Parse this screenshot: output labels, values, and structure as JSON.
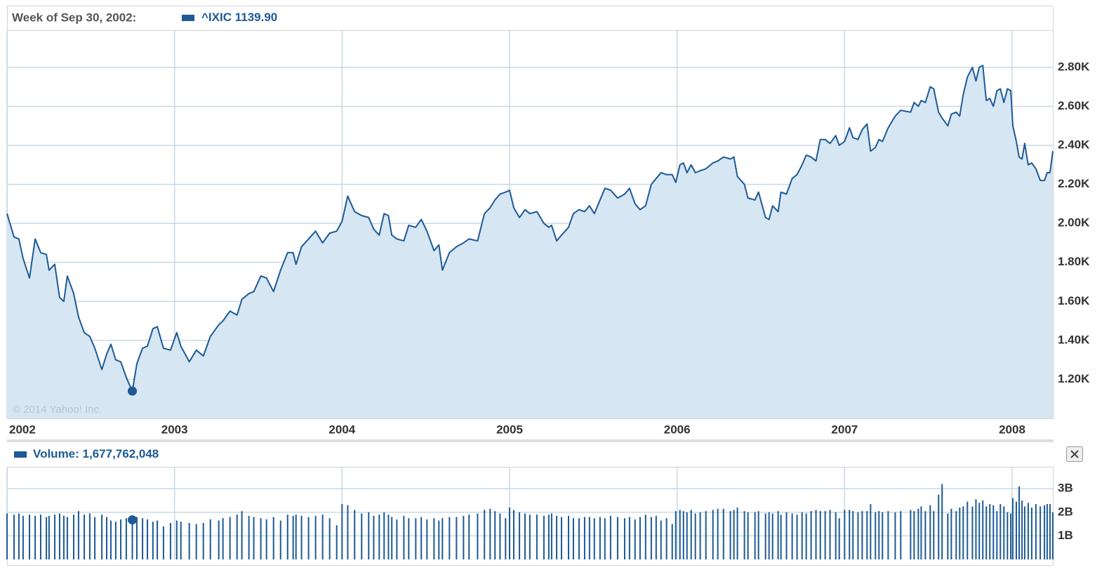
{
  "chart_data": {
    "type": "area",
    "hover": {
      "title": "Week of Sep 30, 2002:",
      "index": 24
    },
    "watermark": "© 2014 Yahoo! Inc.",
    "grid": true,
    "xlim": [
      2002,
      2008.243
    ],
    "xticks": [
      2002,
      2003,
      2004,
      2005,
      2006,
      2007,
      2008
    ],
    "ylim": [
      1000,
      2987
    ],
    "yticks": [
      {
        "value": 1200,
        "label": "1.20K"
      },
      {
        "value": 1400,
        "label": "1.40K"
      },
      {
        "value": 1600,
        "label": "1.60K"
      },
      {
        "value": 1800,
        "label": "1.80K"
      },
      {
        "value": 2000,
        "label": "2.00K"
      },
      {
        "value": 2200,
        "label": "2.20K"
      },
      {
        "value": 2400,
        "label": "2.40K"
      },
      {
        "value": 2600,
        "label": "2.60K"
      },
      {
        "value": 2800,
        "label": "2.80K"
      }
    ],
    "y2lim": [
      0,
      3.9
    ],
    "y2ticks": [
      {
        "value": 1,
        "label": "1B"
      },
      {
        "value": 2,
        "label": "2B"
      },
      {
        "value": 3,
        "label": "3B"
      }
    ],
    "x": [
      2002.0,
      2002.042,
      2002.071,
      2002.096,
      2002.134,
      2002.168,
      2002.201,
      2002.235,
      2002.251,
      2002.285,
      2002.314,
      2002.339,
      2002.36,
      2002.398,
      2002.427,
      2002.461,
      2002.494,
      2002.524,
      2002.566,
      2002.595,
      2002.62,
      2002.649,
      2002.679,
      2002.712,
      2002.748,
      2002.775,
      2002.809,
      2002.838,
      2002.871,
      2002.897,
      2002.934,
      2002.976,
      2003.013,
      2003.038,
      2003.088,
      2003.13,
      2003.172,
      2003.214,
      2003.264,
      2003.289,
      2003.331,
      2003.373,
      2003.402,
      2003.444,
      2003.473,
      2003.515,
      2003.549,
      2003.591,
      2003.633,
      2003.675,
      2003.708,
      2003.725,
      2003.758,
      2003.8,
      2003.842,
      2003.884,
      2003.926,
      2003.968,
      2004.0,
      2004.034,
      2004.075,
      2004.117,
      2004.159,
      2004.189,
      2004.222,
      2004.251,
      2004.277,
      2004.297,
      2004.327,
      2004.369,
      2004.398,
      2004.44,
      2004.473,
      2004.507,
      2004.549,
      2004.578,
      2004.599,
      2004.641,
      2004.683,
      2004.725,
      2004.758,
      2004.809,
      2004.85,
      2004.884,
      2004.913,
      2004.943,
      2004.976,
      2005.0,
      2005.025,
      2005.059,
      2005.092,
      2005.121,
      2005.163,
      2005.205,
      2005.234,
      2005.251,
      2005.281,
      2005.31,
      2005.352,
      2005.381,
      2005.415,
      2005.448,
      2005.477,
      2005.506,
      2005.54,
      2005.569,
      2005.603,
      2005.645,
      2005.687,
      2005.716,
      2005.749,
      2005.779,
      2005.812,
      2005.846,
      2005.875,
      2005.904,
      2005.937,
      2005.971,
      2005.992,
      2006.017,
      2006.038,
      2006.059,
      2006.084,
      2006.109,
      2006.138,
      2006.172,
      2006.214,
      2006.243,
      2006.277,
      2006.318,
      2006.339,
      2006.36,
      2006.402,
      2006.423,
      2006.465,
      2006.486,
      2006.528,
      2006.549,
      2006.57,
      2006.603,
      2006.62,
      2006.653,
      2006.687,
      2006.716,
      2006.746,
      2006.771,
      2006.8,
      2006.829,
      2006.855,
      2006.884,
      2006.913,
      2006.947,
      2006.968,
      2007.0,
      2007.029,
      2007.05,
      2007.08,
      2007.105,
      2007.134,
      2007.155,
      2007.184,
      2007.205,
      2007.226,
      2007.26,
      2007.302,
      2007.335,
      2007.394,
      2007.415,
      2007.44,
      2007.457,
      2007.482,
      2007.511,
      2007.532,
      2007.561,
      2007.582,
      2007.616,
      2007.637,
      2007.666,
      2007.687,
      2007.708,
      2007.733,
      2007.763,
      2007.784,
      2007.804,
      2007.825,
      2007.846,
      2007.867,
      2007.888,
      2007.909,
      2007.93,
      2007.951,
      2007.972,
      2007.992,
      2008.004,
      2008.025,
      2008.042,
      2008.059,
      2008.075,
      2008.096,
      2008.117,
      2008.142,
      2008.168,
      2008.193,
      2008.209,
      2008.226,
      2008.243
    ],
    "series": [
      {
        "name": "^IXIC",
        "color": "#1d5a96",
        "fill": "#d6e6f3",
        "hover_label": "1139.90",
        "values": [
          2050,
          1930,
          1920,
          1820,
          1720,
          1920,
          1850,
          1840,
          1760,
          1790,
          1620,
          1600,
          1730,
          1640,
          1520,
          1440,
          1420,
          1360,
          1250,
          1330,
          1380,
          1300,
          1290,
          1210,
          1139.9,
          1280,
          1360,
          1370,
          1460,
          1470,
          1360,
          1350,
          1440,
          1370,
          1290,
          1350,
          1320,
          1420,
          1480,
          1500,
          1550,
          1530,
          1610,
          1640,
          1650,
          1730,
          1720,
          1650,
          1760,
          1850,
          1850,
          1790,
          1880,
          1920,
          1960,
          1900,
          1950,
          1960,
          2010,
          2140,
          2060,
          2040,
          2030,
          1970,
          1940,
          2050,
          2040,
          1940,
          1920,
          1910,
          1990,
          1980,
          2020,
          1960,
          1860,
          1890,
          1760,
          1850,
          1880,
          1900,
          1920,
          1910,
          2050,
          2080,
          2120,
          2150,
          2160,
          2170,
          2080,
          2030,
          2070,
          2050,
          2060,
          2000,
          1980,
          1990,
          1910,
          1940,
          1980,
          2050,
          2070,
          2060,
          2090,
          2050,
          2120,
          2180,
          2170,
          2130,
          2150,
          2180,
          2100,
          2070,
          2090,
          2200,
          2230,
          2260,
          2250,
          2250,
          2210,
          2300,
          2310,
          2260,
          2300,
          2260,
          2270,
          2280,
          2310,
          2320,
          2340,
          2330,
          2340,
          2240,
          2200,
          2130,
          2120,
          2160,
          2030,
          2020,
          2090,
          2060,
          2160,
          2150,
          2230,
          2250,
          2300,
          2350,
          2340,
          2320,
          2430,
          2430,
          2410,
          2450,
          2400,
          2420,
          2490,
          2440,
          2430,
          2480,
          2510,
          2370,
          2390,
          2430,
          2420,
          2490,
          2550,
          2580,
          2570,
          2620,
          2600,
          2630,
          2620,
          2700,
          2690,
          2570,
          2540,
          2500,
          2560,
          2570,
          2550,
          2660,
          2750,
          2800,
          2730,
          2800,
          2810,
          2630,
          2640,
          2600,
          2680,
          2690,
          2620,
          2690,
          2680,
          2500,
          2420,
          2340,
          2330,
          2410,
          2300,
          2310,
          2280,
          2220,
          2220,
          2260,
          2260,
          2370
        ]
      },
      {
        "name": "Volume:",
        "color": "#1d5a96",
        "axis": "y2",
        "type": "bar",
        "hover_label": "1,677,762,048",
        "values": [
          1.95,
          1.9,
          1.95,
          1.85,
          1.9,
          1.85,
          1.9,
          1.8,
          1.85,
          1.9,
          1.95,
          1.85,
          1.8,
          1.9,
          2.05,
          1.9,
          1.95,
          1.8,
          1.9,
          1.8,
          1.65,
          1.6,
          1.7,
          1.75,
          1.677762048,
          1.8,
          1.75,
          1.7,
          1.6,
          1.65,
          1.4,
          1.55,
          1.65,
          1.6,
          1.55,
          1.5,
          1.55,
          1.7,
          1.65,
          1.75,
          1.8,
          1.9,
          2.05,
          1.85,
          1.8,
          1.75,
          1.7,
          1.8,
          1.65,
          1.9,
          1.85,
          1.9,
          1.85,
          1.8,
          1.85,
          1.9,
          1.75,
          1.45,
          2.35,
          2.3,
          2.1,
          1.95,
          2.0,
          1.85,
          1.9,
          2.0,
          1.9,
          1.8,
          1.7,
          1.85,
          1.75,
          1.75,
          1.8,
          1.7,
          1.75,
          1.65,
          1.75,
          1.8,
          1.8,
          1.85,
          1.9,
          1.95,
          2.1,
          2.15,
          2.05,
          1.95,
          1.75,
          2.2,
          2.1,
          2.0,
          1.95,
          1.9,
          1.9,
          1.85,
          1.9,
          1.95,
          1.85,
          1.8,
          1.85,
          1.75,
          1.75,
          1.8,
          1.8,
          1.75,
          1.8,
          1.75,
          1.85,
          1.8,
          1.75,
          1.8,
          1.7,
          1.8,
          1.9,
          1.8,
          1.85,
          1.65,
          1.75,
          1.5,
          2.05,
          2.1,
          2.05,
          2.0,
          2.1,
          1.95,
          2.0,
          2.05,
          2.1,
          2.15,
          2.15,
          2.05,
          2.1,
          2.2,
          2.05,
          2.0,
          2.0,
          2.05,
          1.95,
          2.0,
          1.95,
          2.05,
          1.9,
          2.0,
          1.95,
          1.9,
          2.0,
          1.95,
          2.05,
          2.1,
          2.05,
          2.05,
          2.1,
          2.0,
          1.75,
          2.1,
          2.1,
          2.05,
          2.0,
          2.05,
          2.05,
          2.35,
          2.0,
          2.05,
          2.0,
          2.05,
          2.0,
          2.05,
          2.1,
          2.05,
          2.15,
          2.25,
          2.05,
          2.3,
          2.05,
          2.75,
          3.2,
          1.95,
          2.15,
          2.05,
          2.2,
          2.25,
          2.45,
          2.25,
          2.55,
          2.4,
          2.5,
          2.25,
          2.35,
          2.3,
          2.05,
          2.35,
          2.25,
          2.0,
          1.95,
          2.6,
          2.45,
          3.1,
          2.5,
          2.25,
          2.4,
          2.2,
          2.35,
          2.25,
          2.3,
          2.35,
          2.35,
          2.0
        ]
      }
    ]
  }
}
